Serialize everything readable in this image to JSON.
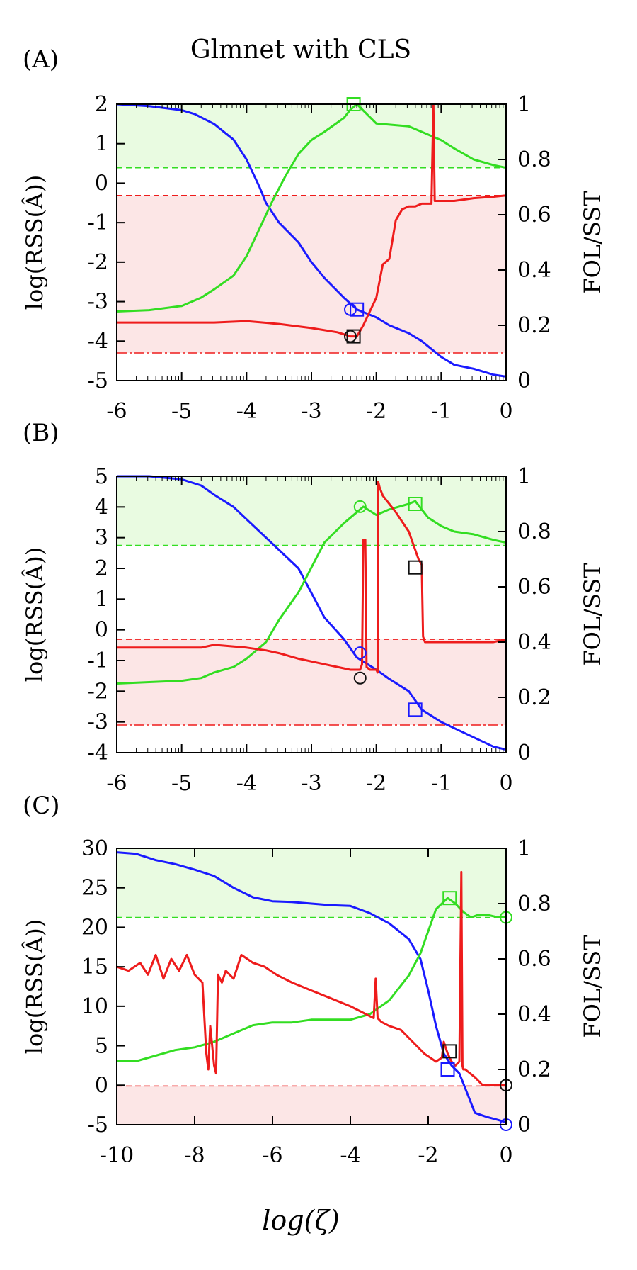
{
  "title": "Glmnet with CLS",
  "x_label": "log(ζ)",
  "colors": {
    "blue": "#1a1aff",
    "green": "#33dd22",
    "red": "#ee1c1c",
    "black": "#111111",
    "green_fill": "#e9fbe1",
    "red_fill": "#fce6e6"
  },
  "chart_data": [
    {
      "type": "line",
      "label": "(A)",
      "xlim": [
        -6,
        0
      ],
      "xticks": [
        "-6",
        "-5",
        "-4",
        "-3",
        "-2",
        "-1",
        "0"
      ],
      "ylim_left": [
        -5,
        2
      ],
      "yticks_left": [
        "2",
        "1",
        "0",
        "-1",
        "-2",
        "-3",
        "-4",
        "-5"
      ],
      "ylabel_left": "log(RSS(Â))",
      "ylim_right": [
        0,
        1
      ],
      "yticks_right": [
        "1",
        "0.8",
        "0.6",
        "0.4",
        "0.2",
        "0"
      ],
      "ylabel_right": "FOL/SST",
      "green_band": [
        0.77,
        1.0
      ],
      "red_band": [
        0.1,
        0.67
      ],
      "series": [
        {
          "name": "RSS",
          "axis": "left",
          "color": "blue",
          "x": [
            -6,
            -5.5,
            -5,
            -4.8,
            -4.5,
            -4.2,
            -4.0,
            -3.8,
            -3.7,
            -3.5,
            -3.2,
            -3.0,
            -2.8,
            -2.5,
            -2.3,
            -2.0,
            -1.8,
            -1.5,
            -1.3,
            -1.0,
            -0.8,
            -0.5,
            -0.2,
            0
          ],
          "y": [
            2.0,
            1.95,
            1.85,
            1.75,
            1.5,
            1.1,
            0.6,
            -0.1,
            -0.5,
            -1.0,
            -1.5,
            -2.0,
            -2.4,
            -2.9,
            -3.2,
            -3.4,
            -3.6,
            -3.8,
            -4.0,
            -4.4,
            -4.6,
            -4.7,
            -4.85,
            -4.9
          ]
        },
        {
          "name": "FOL/SST (green)",
          "axis": "right",
          "color": "green",
          "x": [
            -6,
            -5.5,
            -5,
            -4.7,
            -4.5,
            -4.2,
            -4.0,
            -3.8,
            -3.6,
            -3.4,
            -3.2,
            -3.0,
            -2.8,
            -2.5,
            -2.4,
            -2.3,
            -2.0,
            -1.5,
            -1.3,
            -1.0,
            -0.8,
            -0.5,
            -0.2,
            0
          ],
          "y": [
            0.25,
            0.255,
            0.27,
            0.3,
            0.33,
            0.38,
            0.45,
            0.55,
            0.65,
            0.74,
            0.82,
            0.87,
            0.9,
            0.95,
            0.98,
            1.0,
            0.93,
            0.92,
            0.9,
            0.87,
            0.84,
            0.8,
            0.78,
            0.77
          ]
        },
        {
          "name": "FOL/SST (red)",
          "axis": "right",
          "color": "red",
          "x": [
            -6,
            -5.5,
            -5,
            -4.5,
            -4.0,
            -3.5,
            -3.0,
            -2.6,
            -2.4,
            -2.3,
            -2.2,
            -2.0,
            -1.9,
            -1.8,
            -1.7,
            -1.6,
            -1.5,
            -1.4,
            -1.3,
            -1.2,
            -1.15,
            -1.12,
            -1.1,
            -1.05,
            -0.8,
            -0.5,
            -0.2,
            0
          ],
          "y": [
            0.21,
            0.21,
            0.21,
            0.21,
            0.215,
            0.205,
            0.19,
            0.175,
            0.16,
            0.16,
            0.2,
            0.3,
            0.42,
            0.44,
            0.58,
            0.62,
            0.63,
            0.63,
            0.64,
            0.64,
            0.64,
            1.0,
            0.65,
            0.65,
            0.65,
            0.66,
            0.665,
            0.67
          ]
        }
      ],
      "markers": [
        {
          "shape": "circle",
          "color": "blue",
          "x": -2.4,
          "axis": "left",
          "y": -3.2
        },
        {
          "shape": "square",
          "color": "blue",
          "x": -2.3,
          "axis": "left",
          "y": -3.2
        },
        {
          "shape": "square",
          "color": "green",
          "x": -2.35,
          "axis": "right",
          "y": 1.0
        },
        {
          "shape": "circle",
          "color": "black",
          "x": -2.4,
          "axis": "right",
          "y": 0.16
        },
        {
          "shape": "square",
          "color": "black",
          "x": -2.35,
          "axis": "right",
          "y": 0.16
        }
      ]
    },
    {
      "type": "line",
      "label": "(B)",
      "xlim": [
        -6,
        0
      ],
      "xticks": [
        "-6",
        "-5",
        "-4",
        "-3",
        "-2",
        "-1",
        "0"
      ],
      "ylim_left": [
        -4,
        5
      ],
      "yticks_left": [
        "5",
        "4",
        "3",
        "2",
        "1",
        "0",
        "-1",
        "-2",
        "-3",
        "-4"
      ],
      "ylabel_left": "log(RSS(Â))",
      "ylim_right": [
        0,
        1
      ],
      "yticks_right": [
        "1",
        "0.8",
        "0.6",
        "0.4",
        "0.2",
        "0"
      ],
      "ylabel_right": "FOL/SST",
      "green_band": [
        0.75,
        1.0
      ],
      "red_band": [
        0.1,
        0.41
      ],
      "series": [
        {
          "name": "RSS",
          "axis": "left",
          "color": "blue",
          "x": [
            -6,
            -5.5,
            -5,
            -4.7,
            -4.5,
            -4.2,
            -4.0,
            -3.8,
            -3.5,
            -3.2,
            -3.0,
            -2.8,
            -2.5,
            -2.3,
            -2.0,
            -1.8,
            -1.5,
            -1.3,
            -1.0,
            -0.7,
            -0.4,
            -0.2,
            0
          ],
          "y": [
            5.0,
            5.0,
            4.9,
            4.7,
            4.4,
            4.0,
            3.6,
            3.2,
            2.6,
            2.0,
            1.2,
            0.4,
            -0.3,
            -0.9,
            -1.3,
            -1.6,
            -2.0,
            -2.6,
            -3.0,
            -3.3,
            -3.6,
            -3.8,
            -3.9
          ]
        },
        {
          "name": "FOL/SST (green)",
          "axis": "right",
          "color": "green",
          "x": [
            -6,
            -5.5,
            -5,
            -4.7,
            -4.5,
            -4.2,
            -4.0,
            -3.7,
            -3.5,
            -3.2,
            -3.0,
            -2.8,
            -2.5,
            -2.3,
            -2.2,
            -2.0,
            -1.8,
            -1.5,
            -1.4,
            -1.2,
            -1.0,
            -0.8,
            -0.5,
            -0.2,
            0
          ],
          "y": [
            0.25,
            0.255,
            0.26,
            0.27,
            0.29,
            0.31,
            0.34,
            0.4,
            0.48,
            0.58,
            0.67,
            0.76,
            0.83,
            0.87,
            0.89,
            0.86,
            0.88,
            0.9,
            0.91,
            0.85,
            0.82,
            0.8,
            0.79,
            0.77,
            0.76
          ]
        },
        {
          "name": "FOL/SST (red)",
          "axis": "right",
          "color": "red",
          "x": [
            -6,
            -5.5,
            -5,
            -4.7,
            -4.5,
            -4.0,
            -3.7,
            -3.5,
            -3.2,
            -3.0,
            -2.8,
            -2.6,
            -2.4,
            -2.25,
            -2.22,
            -2.2,
            -2.17,
            -2.15,
            -2.1,
            -2.0,
            -1.98,
            -1.97,
            -1.95,
            -1.9,
            -1.7,
            -1.5,
            -1.35,
            -1.3,
            -1.28,
            -1.25,
            -1.2,
            -1.0,
            -0.5,
            -0.2,
            0
          ],
          "y": [
            0.38,
            0.38,
            0.38,
            0.38,
            0.39,
            0.38,
            0.37,
            0.36,
            0.34,
            0.33,
            0.32,
            0.31,
            0.3,
            0.3,
            0.32,
            0.77,
            0.77,
            0.31,
            0.3,
            0.3,
            0.29,
            0.98,
            0.96,
            0.93,
            0.87,
            0.8,
            0.7,
            0.68,
            0.42,
            0.4,
            0.4,
            0.4,
            0.4,
            0.4,
            0.41
          ]
        }
      ],
      "markers": [
        {
          "shape": "circle",
          "color": "blue",
          "x": -2.25,
          "axis": "left",
          "y": -0.75
        },
        {
          "shape": "square",
          "color": "blue",
          "x": -1.4,
          "axis": "left",
          "y": -2.6
        },
        {
          "shape": "circle",
          "color": "green",
          "x": -2.25,
          "axis": "right",
          "y": 0.89
        },
        {
          "shape": "square",
          "color": "green",
          "x": -1.4,
          "axis": "right",
          "y": 0.9
        },
        {
          "shape": "circle",
          "color": "black",
          "x": -2.25,
          "axis": "right",
          "y": 0.27
        },
        {
          "shape": "square",
          "color": "black",
          "x": -1.4,
          "axis": "right",
          "y": 0.67
        }
      ]
    },
    {
      "type": "line",
      "label": "(C)",
      "xlim": [
        -10,
        0
      ],
      "xticks": [
        "-10",
        "-8",
        "-6",
        "-4",
        "-2",
        "0"
      ],
      "ylim_left": [
        -5,
        30
      ],
      "yticks_left": [
        "30",
        "25",
        "20",
        "15",
        "10",
        "5",
        "0",
        "-5"
      ],
      "ylabel_left": "log(RSS(Â))",
      "ylim_right": [
        0,
        1
      ],
      "yticks_right": [
        "1",
        "0.8",
        "0.6",
        "0.4",
        "0.2",
        "0"
      ],
      "ylabel_right": "FOL/SST",
      "green_band": [
        0.75,
        1.0
      ],
      "red_band": [
        0.0,
        0.14
      ],
      "series": [
        {
          "name": "RSS",
          "axis": "left",
          "color": "blue",
          "x": [
            -10,
            -9.5,
            -9,
            -8.5,
            -8,
            -7.5,
            -7,
            -6.5,
            -6,
            -5.5,
            -5,
            -4.5,
            -4,
            -3.5,
            -3,
            -2.5,
            -2.2,
            -2.0,
            -1.8,
            -1.6,
            -1.4,
            -1.2,
            -1.0,
            -0.8,
            -0.5,
            -0.2,
            0
          ],
          "y": [
            29.5,
            29.3,
            28.5,
            28.0,
            27.3,
            26.5,
            25.0,
            23.8,
            23.3,
            23.2,
            23.0,
            22.8,
            22.7,
            21.8,
            20.5,
            18.5,
            16.0,
            12.0,
            7.5,
            4.0,
            2.5,
            1.5,
            -1.0,
            -3.5,
            -4.0,
            -4.4,
            -4.7
          ]
        },
        {
          "name": "FOL/SST (green)",
          "axis": "right",
          "color": "green",
          "x": [
            -10,
            -9.5,
            -9,
            -8.5,
            -8,
            -7.5,
            -7,
            -6.5,
            -6,
            -5.5,
            -5,
            -4.5,
            -4,
            -3.5,
            -3,
            -2.5,
            -2.2,
            -2.0,
            -1.8,
            -1.5,
            -1.3,
            -1.1,
            -0.9,
            -0.7,
            -0.5,
            -0.2,
            0
          ],
          "y": [
            0.23,
            0.23,
            0.25,
            0.27,
            0.28,
            0.3,
            0.33,
            0.36,
            0.37,
            0.37,
            0.38,
            0.38,
            0.38,
            0.4,
            0.45,
            0.54,
            0.62,
            0.7,
            0.78,
            0.82,
            0.8,
            0.77,
            0.75,
            0.76,
            0.76,
            0.75,
            0.75
          ]
        },
        {
          "name": "FOL/SST (red)",
          "axis": "left",
          "color": "red",
          "x": [
            -10,
            -9.7,
            -9.4,
            -9.2,
            -9.0,
            -8.8,
            -8.6,
            -8.4,
            -8.2,
            -8.0,
            -7.8,
            -7.7,
            -7.65,
            -7.6,
            -7.5,
            -7.45,
            -7.4,
            -7.3,
            -7.2,
            -7.0,
            -6.8,
            -6.5,
            -6.2,
            -5.9,
            -5.5,
            -5.0,
            -4.5,
            -4.0,
            -3.6,
            -3.4,
            -3.35,
            -3.3,
            -3.2,
            -3.0,
            -2.7,
            -2.4,
            -2.1,
            -1.8,
            -1.65,
            -1.6,
            -1.5,
            -1.4,
            -1.3,
            -1.2,
            -1.15,
            -1.12,
            -1.1,
            -1.05,
            -0.8,
            -0.6,
            -0.3,
            0
          ],
          "y": [
            15.0,
            14.5,
            15.5,
            14.0,
            16.5,
            13.5,
            16.0,
            14.5,
            16.5,
            14.0,
            13.0,
            4.0,
            2.0,
            7.5,
            2.5,
            1.5,
            14.0,
            13.0,
            14.5,
            13.5,
            16.5,
            15.5,
            15.0,
            14.0,
            13.0,
            12.0,
            11.0,
            10.0,
            9.0,
            8.5,
            13.5,
            8.5,
            8.0,
            7.5,
            7.0,
            5.5,
            4.0,
            3.0,
            3.5,
            5.5,
            4.0,
            3.0,
            2.5,
            3.0,
            27.0,
            2.5,
            2.0,
            2.0,
            1.0,
            0.0,
            0.0,
            0.0
          ]
        }
      ],
      "markers": [
        {
          "shape": "square",
          "color": "green",
          "x": -1.45,
          "axis": "right",
          "y": 0.82
        },
        {
          "shape": "circle",
          "color": "green",
          "x": 0,
          "axis": "right",
          "y": 0.75
        },
        {
          "shape": "square",
          "color": "blue",
          "x": -1.5,
          "axis": "left",
          "y": 2.0
        },
        {
          "shape": "circle",
          "color": "blue",
          "x": 0,
          "axis": "left",
          "y": -5.0
        },
        {
          "shape": "square",
          "color": "black",
          "x": -1.45,
          "axis": "left",
          "y": 4.3
        },
        {
          "shape": "circle",
          "color": "black",
          "x": 0,
          "axis": "left",
          "y": 0.0
        }
      ]
    }
  ]
}
